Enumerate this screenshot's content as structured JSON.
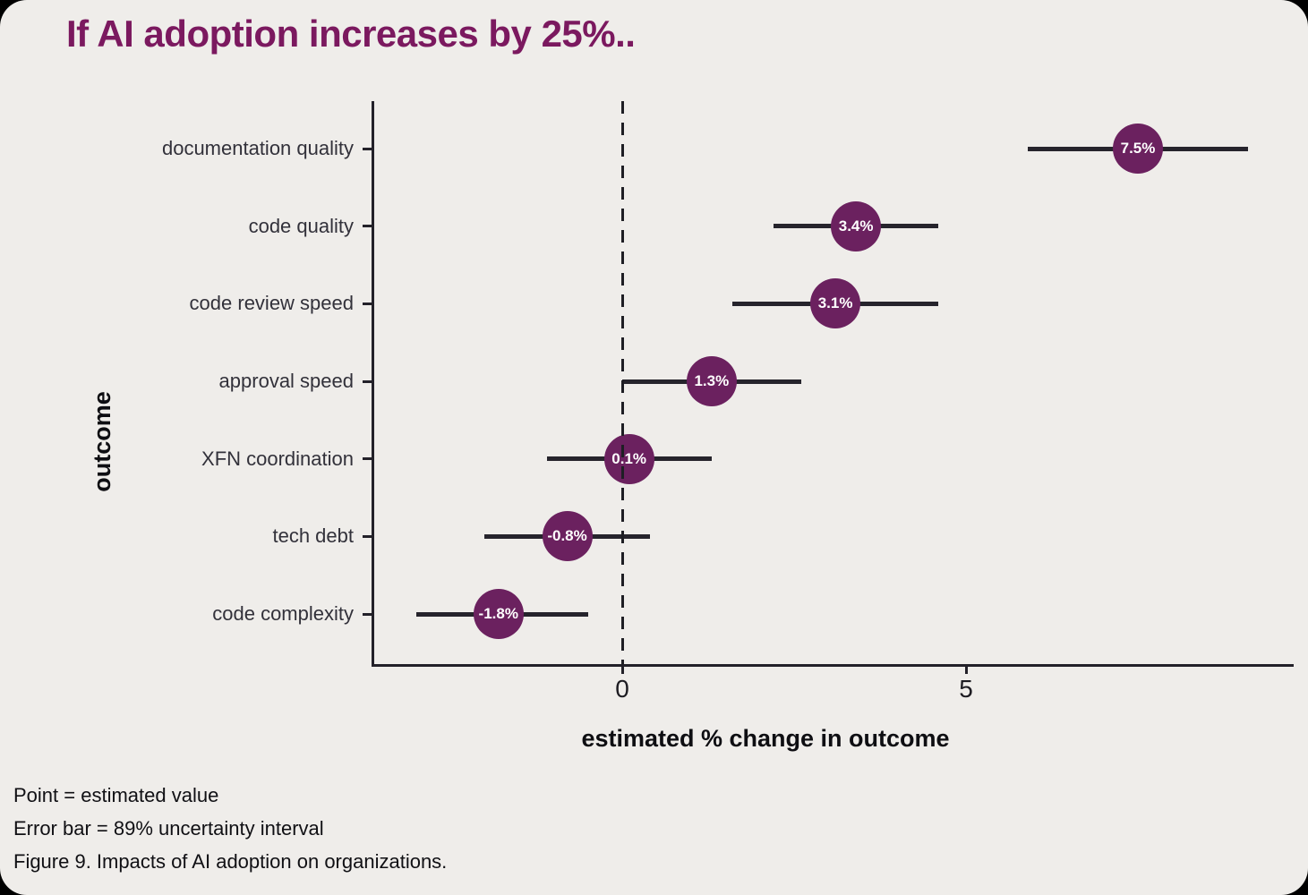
{
  "title": "If AI adoption increases by 25%..",
  "footer": {
    "line1": "Point = estimated value",
    "line2": "Error bar = 89% uncertainty interval",
    "line3": "Figure 9. Impacts of AI adoption on organizations."
  },
  "colors": {
    "background": "#efedea",
    "point_fill": "#6b215f",
    "point_label": "#ffffff",
    "title": "#7b195f",
    "axis": "#232129",
    "error_bar": "#26242c",
    "category_label": "#32313a"
  },
  "chart_data": {
    "type": "scatter",
    "subtype": "dot-and-whisker (forest plot), horizontal",
    "title": "If AI adoption increases by 25%..",
    "xlabel": "estimated % change in outcome",
    "ylabel": "outcome",
    "xlim": [
      -3.6,
      9.8
    ],
    "x_ticks": [
      0,
      5
    ],
    "zero_reference_line": 0,
    "grid": false,
    "legend": false,
    "categories": [
      "documentation quality",
      "code quality",
      "code review speed",
      "approval speed",
      "XFN coordination",
      "tech debt",
      "code complexity"
    ],
    "points": [
      {
        "category": "documentation quality",
        "estimate": 7.5,
        "label": "7.5%",
        "ci_low": 5.9,
        "ci_high": 9.1
      },
      {
        "category": "code quality",
        "estimate": 3.4,
        "label": "3.4%",
        "ci_low": 2.2,
        "ci_high": 4.6
      },
      {
        "category": "code review speed",
        "estimate": 3.1,
        "label": "3.1%",
        "ci_low": 1.6,
        "ci_high": 4.6
      },
      {
        "category": "approval speed",
        "estimate": 1.3,
        "label": "1.3%",
        "ci_low": 0.0,
        "ci_high": 2.6
      },
      {
        "category": "XFN coordination",
        "estimate": 0.1,
        "label": "0.1%",
        "ci_low": -1.1,
        "ci_high": 1.3
      },
      {
        "category": "tech debt",
        "estimate": -0.8,
        "label": "-0.8%",
        "ci_low": -2.0,
        "ci_high": 0.4
      },
      {
        "category": "code complexity",
        "estimate": -1.8,
        "label": "-1.8%",
        "ci_low": -3.0,
        "ci_high": -0.5
      }
    ],
    "uncertainty_note": "Error bar = 89% uncertainty interval"
  }
}
